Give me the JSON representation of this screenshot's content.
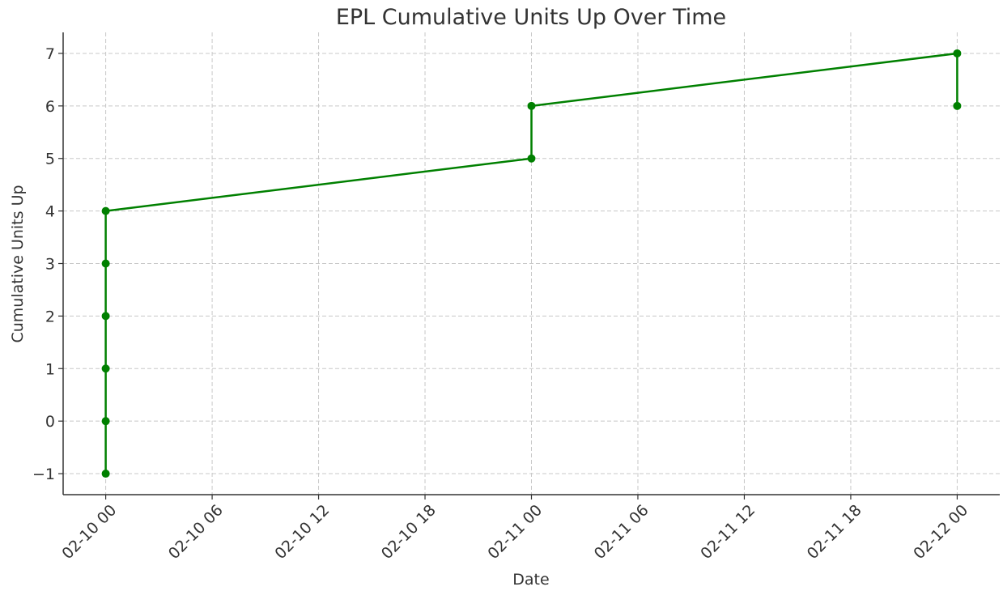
{
  "chart_data": {
    "type": "line",
    "title": "EPL Cumulative Units Up Over Time",
    "x_label": "Date",
    "y_label": "Cumulative Units Up",
    "x": [
      "02-10 00",
      "02-10 00",
      "02-10 00",
      "02-10 00",
      "02-10 00",
      "02-10 00",
      "02-11 00",
      "02-11 00",
      "02-12 00",
      "02-12 00"
    ],
    "series": [
      {
        "name": "Cumulative Units Up",
        "color": "#008000",
        "values": [
          -1,
          0,
          1,
          2,
          3,
          4,
          5,
          6,
          7,
          6
        ]
      }
    ],
    "xlim": [
      "02-09 21:36",
      "02-12 02:24"
    ],
    "xticks": [
      "02-10 00",
      "02-10 06",
      "02-10 12",
      "02-10 18",
      "02-11 00",
      "02-11 06",
      "02-11 12",
      "02-11 18",
      "02-12 00"
    ],
    "ylim": [
      -1.4,
      7.4
    ],
    "yticks": [
      {
        "value": -1,
        "label": "−1"
      },
      0,
      1,
      2,
      3,
      4,
      5,
      6,
      7
    ],
    "grid": true
  }
}
